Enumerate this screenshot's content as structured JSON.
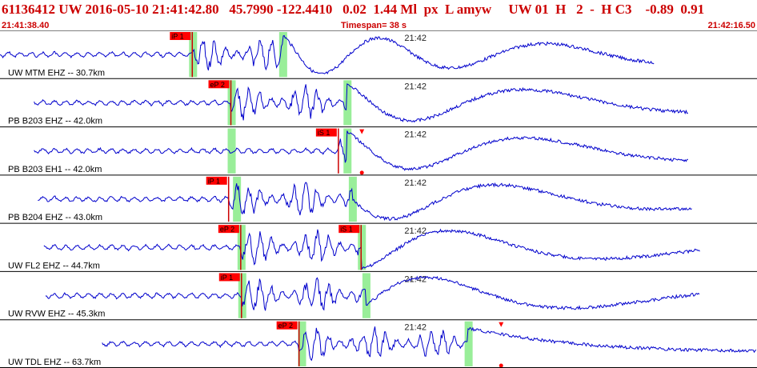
{
  "header": {
    "title_line": "61136412 UW 2016-05-10 21:41:42.80   45.7990 -122.4410   0.02  1.44 Ml  px  L amyw     UW 01  H   2  -  H C3    -0.89  0.91",
    "start_time": "21:41:38.40",
    "end_time": "21:42:16.50",
    "timespan": "Timespan=  38 s"
  },
  "colors": {
    "header_text": "#cc0000",
    "trace": "#0000cc",
    "pick_box": "#ff0000",
    "pick_window": "#99ee99",
    "divider": "#000000",
    "label": "#000000"
  },
  "minute_label": "21:42",
  "traces": [
    {
      "label": "UW MTM EHZ -- 30.7km",
      "picks": [
        {
          "text": "iP 1",
          "time": 0.254
        }
      ],
      "windows": [
        0.254,
        0.373
      ],
      "markers": [],
      "trace_start": 0.0,
      "trace_end": 0.865
    },
    {
      "label": "PB B203 EHZ -- 42.0km",
      "picks": [
        {
          "text": "eP 2",
          "time": 0.305
        }
      ],
      "windows": [
        0.305,
        0.458
      ],
      "markers": [],
      "trace_start": 0.045,
      "trace_end": 0.91
    },
    {
      "label": "PB B203 EH1 -- 42.0km",
      "picks": [
        {
          "text": "iS 1",
          "time": 0.447
        }
      ],
      "windows": [
        0.305,
        0.458
      ],
      "markers": [
        0.478
      ],
      "trace_start": 0.045,
      "trace_end": 0.91
    },
    {
      "label": "PB B204 EHZ -- 43.0km",
      "picks": [
        {
          "text": "iP 1",
          "time": 0.302
        }
      ],
      "windows": [
        0.312,
        0.465
      ],
      "markers": [],
      "trace_start": 0.05,
      "trace_end": 0.915
    },
    {
      "label": "UW FL2 EHZ -- 44.7km",
      "picks": [
        {
          "text": "eP 2",
          "time": 0.318
        },
        {
          "text": "iS 1",
          "time": 0.477
        }
      ],
      "windows": [
        0.318,
        0.477
      ],
      "markers": [],
      "trace_start": 0.058,
      "trace_end": 0.925
    },
    {
      "label": "UW RVW EHZ -- 45.3km",
      "picks": [
        {
          "text": "iP 1",
          "time": 0.319
        }
      ],
      "windows": [
        0.319,
        0.483
      ],
      "markers": [],
      "trace_start": 0.06,
      "trace_end": 0.925
    },
    {
      "label": "UW TDL EHZ -- 63.7km",
      "picks": [
        {
          "text": "eP 2",
          "time": 0.395
        }
      ],
      "windows": [
        0.398,
        0.618
      ],
      "markers": [
        0.662
      ],
      "trace_start": 0.135,
      "trace_end": 1.0
    }
  ]
}
